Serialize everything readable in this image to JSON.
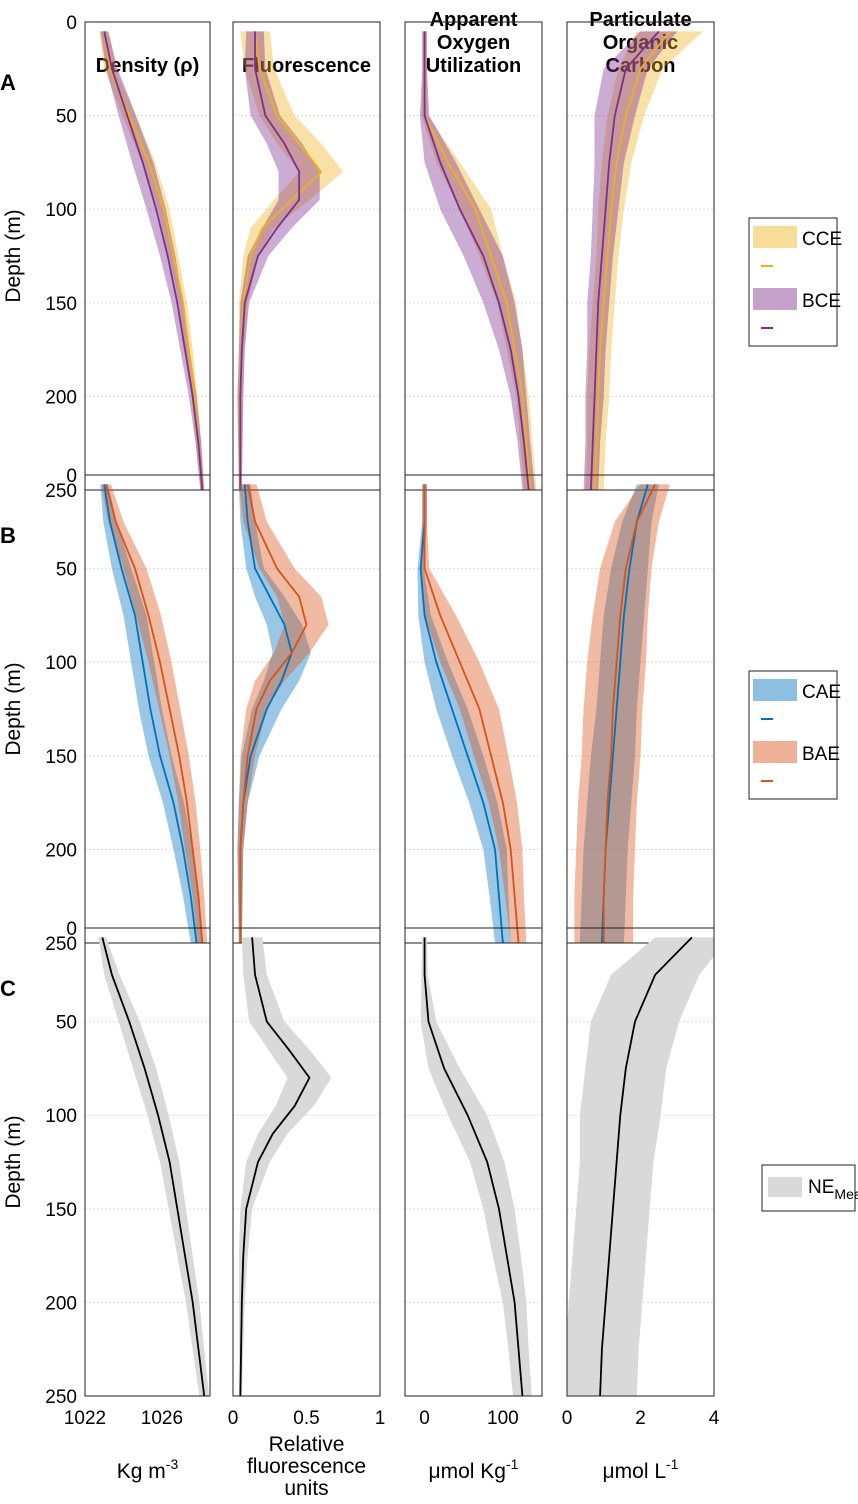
{
  "figure": {
    "column_titles": [
      [
        "Density (ρ)"
      ],
      [
        "Fluorescence"
      ],
      [
        "Apparent",
        "Oxygen",
        "Utilization"
      ],
      [
        "Particulate",
        "Organic",
        "Carbon"
      ]
    ],
    "row_letters": [
      "A",
      "B",
      "C"
    ],
    "ylabel": "Depth (m)",
    "y_ticks": [
      "0",
      "50",
      "100",
      "150",
      "200",
      "250"
    ],
    "x_tick_labels": [
      [
        "1022",
        "1026"
      ],
      [
        "0",
        "0.5",
        "1"
      ],
      [
        "0",
        "100"
      ],
      [
        "0",
        "2",
        "4"
      ]
    ],
    "x_units": [
      [
        "Kg m",
        "-3"
      ],
      [
        "Relative",
        "fluorescence",
        "units"
      ],
      [
        "μmol Kg",
        "-1"
      ],
      [
        "μmol L",
        "-1"
      ]
    ],
    "legends": [
      [
        {
          "label": "CCE",
          "color": "#EDB120"
        },
        {
          "label": "BCE",
          "color": "#7E2F8E"
        }
      ],
      [
        {
          "label": "CAE",
          "color": "#0072BD"
        },
        {
          "label": "BAE",
          "color": "#D95319"
        }
      ],
      [
        {
          "label": "NE",
          "sub": "Mean",
          "color": "#9a9a9a"
        }
      ]
    ]
  },
  "chart_data": [
    {
      "type": "line",
      "variable": "Density",
      "xlim": [
        1022,
        1028.5
      ],
      "ylim": [
        0,
        250
      ],
      "y_reversed": true,
      "depth": [
        5,
        25,
        50,
        75,
        100,
        125,
        150,
        175,
        200,
        225,
        250
      ],
      "rows": [
        {
          "row": "A",
          "series": [
            {
              "name": "CCE",
              "color": "#EDB120",
              "mean": [
                1023.0,
                1023.3,
                1024.3,
                1025.3,
                1026.1,
                1026.6,
                1027.1,
                1027.4,
                1027.7,
                1027.9,
                1028.1
              ],
              "sd": [
                0.25,
                0.3,
                0.35,
                0.35,
                0.3,
                0.25,
                0.2,
                0.2,
                0.15,
                0.15,
                0.1
              ]
            },
            {
              "name": "BCE",
              "color": "#7E2F8E",
              "mean": [
                1023.0,
                1023.4,
                1024.2,
                1025.0,
                1025.7,
                1026.3,
                1026.8,
                1027.2,
                1027.6,
                1027.9,
                1028.1
              ],
              "sd": [
                0.2,
                0.3,
                0.45,
                0.55,
                0.5,
                0.4,
                0.3,
                0.25,
                0.2,
                0.15,
                0.1
              ]
            }
          ]
        },
        {
          "row": "B",
          "series": [
            {
              "name": "CAE",
              "color": "#0072BD",
              "mean": [
                1023.0,
                1023.3,
                1023.9,
                1024.6,
                1025.0,
                1025.4,
                1025.9,
                1026.6,
                1027.1,
                1027.5,
                1027.8
              ],
              "sd": [
                0.2,
                0.35,
                0.5,
                0.6,
                0.6,
                0.6,
                0.6,
                0.55,
                0.5,
                0.4,
                0.3
              ]
            },
            {
              "name": "BAE",
              "color": "#D95319",
              "mean": [
                1023.1,
                1023.6,
                1024.6,
                1025.3,
                1025.9,
                1026.4,
                1026.9,
                1027.3,
                1027.6,
                1027.9,
                1028.1
              ],
              "sd": [
                0.25,
                0.4,
                0.6,
                0.65,
                0.6,
                0.55,
                0.5,
                0.45,
                0.4,
                0.3,
                0.25
              ]
            }
          ]
        },
        {
          "row": "C",
          "series": [
            {
              "name": "NE Mean",
              "color": "#000000",
              "band": "#d9d9d9",
              "mean": [
                1022.9,
                1023.4,
                1024.3,
                1025.1,
                1025.8,
                1026.4,
                1026.8,
                1027.2,
                1027.6,
                1027.9,
                1028.2
              ],
              "sd": [
                0.2,
                0.4,
                0.55,
                0.6,
                0.55,
                0.5,
                0.45,
                0.4,
                0.35,
                0.3,
                0.25
              ]
            }
          ]
        }
      ]
    },
    {
      "type": "line",
      "variable": "Fluorescence",
      "xlim": [
        0,
        1
      ],
      "ylim": [
        0,
        250
      ],
      "y_reversed": true,
      "depth": [
        5,
        25,
        50,
        65,
        80,
        95,
        110,
        125,
        150,
        175,
        200,
        250
      ],
      "rows": [
        {
          "row": "A",
          "series": [
            {
              "name": "CCE",
              "color": "#EDB120",
              "mean": [
                0.15,
                0.18,
                0.3,
                0.45,
                0.6,
                0.4,
                0.2,
                0.12,
                0.07,
                0.06,
                0.05,
                0.05
              ],
              "sd": [
                0.1,
                0.1,
                0.12,
                0.15,
                0.15,
                0.12,
                0.08,
                0.05,
                0.03,
                0.02,
                0.02,
                0.01
              ]
            },
            {
              "name": "BCE",
              "color": "#7E2F8E",
              "mean": [
                0.15,
                0.15,
                0.22,
                0.35,
                0.45,
                0.45,
                0.3,
                0.17,
                0.08,
                0.06,
                0.05,
                0.05
              ],
              "sd": [
                0.06,
                0.07,
                0.1,
                0.12,
                0.14,
                0.14,
                0.1,
                0.07,
                0.03,
                0.02,
                0.02,
                0.01
              ]
            }
          ]
        },
        {
          "row": "B",
          "series": [
            {
              "name": "CAE",
              "color": "#0072BD",
              "mean": [
                0.08,
                0.1,
                0.15,
                0.25,
                0.35,
                0.4,
                0.33,
                0.23,
                0.12,
                0.07,
                0.05,
                0.05
              ],
              "sd": [
                0.04,
                0.05,
                0.06,
                0.1,
                0.12,
                0.13,
                0.12,
                0.1,
                0.06,
                0.03,
                0.02,
                0.01
              ]
            },
            {
              "name": "BAE",
              "color": "#D95319",
              "mean": [
                0.1,
                0.15,
                0.3,
                0.45,
                0.5,
                0.4,
                0.25,
                0.16,
                0.1,
                0.07,
                0.05,
                0.05
              ],
              "sd": [
                0.06,
                0.08,
                0.12,
                0.15,
                0.15,
                0.12,
                0.1,
                0.07,
                0.05,
                0.03,
                0.02,
                0.01
              ]
            }
          ]
        },
        {
          "row": "C",
          "series": [
            {
              "name": "NE Mean",
              "color": "#000000",
              "band": "#d9d9d9",
              "mean": [
                0.13,
                0.15,
                0.23,
                0.38,
                0.52,
                0.42,
                0.27,
                0.17,
                0.09,
                0.07,
                0.06,
                0.05
              ],
              "sd": [
                0.07,
                0.08,
                0.12,
                0.14,
                0.15,
                0.13,
                0.1,
                0.08,
                0.04,
                0.03,
                0.02,
                0.01
              ]
            }
          ]
        }
      ]
    },
    {
      "type": "line",
      "variable": "Apparent Oxygen Utilization",
      "xlim": [
        -25,
        150
      ],
      "ylim": [
        0,
        250
      ],
      "y_reversed": true,
      "depth": [
        5,
        25,
        50,
        75,
        100,
        125,
        150,
        175,
        200,
        225,
        250
      ],
      "rows": [
        {
          "row": "A",
          "series": [
            {
              "name": "CCE",
              "color": "#EDB120",
              "mean": [
                0,
                0,
                0,
                30,
                65,
                85,
                105,
                115,
                125,
                130,
                135
              ],
              "sd": [
                3,
                3,
                4,
                15,
                20,
                15,
                12,
                10,
                8,
                8,
                8
              ]
            },
            {
              "name": "BCE",
              "color": "#7E2F8E",
              "mean": [
                0,
                0,
                0,
                20,
                45,
                75,
                95,
                110,
                120,
                127,
                133
              ],
              "sd": [
                3,
                3,
                6,
                20,
                25,
                25,
                20,
                15,
                10,
                8,
                8
              ]
            }
          ]
        },
        {
          "row": "B",
          "series": [
            {
              "name": "CAE",
              "color": "#0072BD",
              "mean": [
                0,
                0,
                -5,
                0,
                15,
                35,
                55,
                75,
                90,
                95,
                100
              ],
              "sd": [
                3,
                3,
                4,
                8,
                15,
                20,
                20,
                18,
                15,
                12,
                10
              ]
            },
            {
              "name": "BAE",
              "color": "#D95319",
              "mean": [
                0,
                0,
                0,
                20,
                45,
                70,
                85,
                100,
                110,
                115,
                120
              ],
              "sd": [
                3,
                3,
                6,
                20,
                25,
                25,
                22,
                18,
                15,
                12,
                10
              ]
            }
          ]
        },
        {
          "row": "C",
          "series": [
            {
              "name": "NE Mean",
              "color": "#000000",
              "band": "#d9d9d9",
              "mean": [
                0,
                0,
                5,
                25,
                55,
                80,
                95,
                105,
                115,
                120,
                125
              ],
              "sd": [
                3,
                4,
                10,
                20,
                25,
                22,
                20,
                18,
                15,
                13,
                12
              ]
            }
          ]
        }
      ]
    },
    {
      "type": "line",
      "variable": "Particulate Organic Carbon",
      "xlim": [
        0,
        4
      ],
      "ylim": [
        0,
        250
      ],
      "y_reversed": true,
      "depth": [
        5,
        25,
        50,
        75,
        100,
        125,
        150,
        175,
        200,
        225,
        250
      ],
      "rows": [
        {
          "row": "A",
          "series": [
            {
              "name": "CCE",
              "color": "#EDB120",
              "mean": [
                2.8,
                2.0,
                1.6,
                1.35,
                1.2,
                1.1,
                1.0,
                0.9,
                0.85,
                0.8,
                0.75
              ],
              "sd": [
                0.9,
                0.6,
                0.5,
                0.4,
                0.35,
                0.3,
                0.3,
                0.3,
                0.3,
                0.25,
                0.25
              ]
            },
            {
              "name": "BCE",
              "color": "#7E2F8E",
              "mean": [
                2.5,
                1.6,
                1.3,
                1.15,
                1.05,
                0.95,
                0.85,
                0.8,
                0.75,
                0.7,
                0.65
              ],
              "sd": [
                0.5,
                0.6,
                0.55,
                0.4,
                0.35,
                0.3,
                0.3,
                0.25,
                0.25,
                0.2,
                0.2
              ]
            }
          ]
        },
        {
          "row": "B",
          "series": [
            {
              "name": "CAE",
              "color": "#0072BD",
              "mean": [
                2.2,
                1.9,
                1.7,
                1.55,
                1.45,
                1.35,
                1.25,
                1.15,
                1.05,
                1.0,
                0.95
              ],
              "sd": [
                0.3,
                0.4,
                0.5,
                0.55,
                0.55,
                0.55,
                0.6,
                0.6,
                0.6,
                0.6,
                0.6
              ]
            },
            {
              "name": "BAE",
              "color": "#D95319",
              "mean": [
                2.4,
                1.9,
                1.6,
                1.45,
                1.35,
                1.25,
                1.2,
                1.1,
                1.05,
                1.0,
                1.0
              ],
              "sd": [
                0.4,
                0.6,
                0.7,
                0.75,
                0.8,
                0.8,
                0.8,
                0.8,
                0.8,
                0.8,
                0.8
              ]
            }
          ]
        },
        {
          "row": "C",
          "series": [
            {
              "name": "NE Mean",
              "color": "#000000",
              "band": "#d9d9d9",
              "mean": [
                3.4,
                2.4,
                1.85,
                1.6,
                1.45,
                1.35,
                1.25,
                1.15,
                1.05,
                0.95,
                0.9
              ],
              "sd": [
                1.0,
                1.2,
                1.2,
                1.1,
                1.1,
                1.0,
                1.0,
                1.0,
                1.0,
                1.0,
                1.0
              ]
            }
          ]
        }
      ]
    }
  ]
}
